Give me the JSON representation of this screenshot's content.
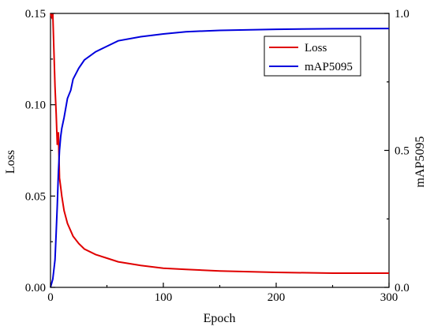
{
  "chart_data": {
    "type": "line",
    "xlabel": "Epoch",
    "ylabel_left": "Loss",
    "ylabel_right": "mAP5095",
    "xlim": [
      0,
      300
    ],
    "ylim_left": [
      0.0,
      0.15
    ],
    "ylim_right": [
      0.0,
      1.0
    ],
    "x_ticks": [
      "0",
      "100",
      "200",
      "300"
    ],
    "y_left_ticks": [
      "0.00",
      "0.05",
      "0.10",
      "0.15"
    ],
    "y_right_ticks": [
      "0.0",
      "0.5",
      "1.0"
    ],
    "legend_position": "top-right",
    "grid": false,
    "series": [
      {
        "name": "Loss",
        "axis": "left",
        "color": "#e00000",
        "x": [
          0,
          1,
          2,
          3,
          4,
          5,
          6,
          7,
          8,
          9,
          10,
          12,
          15,
          20,
          25,
          30,
          40,
          50,
          60,
          80,
          100,
          120,
          150,
          200,
          250,
          300
        ],
        "y": [
          0.15,
          0.148,
          0.15,
          0.13,
          0.11,
          0.095,
          0.078,
          0.085,
          0.06,
          0.055,
          0.05,
          0.042,
          0.035,
          0.028,
          0.024,
          0.021,
          0.018,
          0.016,
          0.014,
          0.012,
          0.0105,
          0.0098,
          0.009,
          0.0082,
          0.0078,
          0.0078
        ]
      },
      {
        "name": "mAP5095",
        "axis": "right",
        "color": "#0000dd",
        "x": [
          0,
          2,
          4,
          5,
          6,
          7,
          8,
          9,
          10,
          12,
          15,
          18,
          20,
          25,
          30,
          40,
          50,
          60,
          80,
          100,
          120,
          150,
          200,
          250,
          300
        ],
        "y": [
          0.0,
          0.03,
          0.1,
          0.2,
          0.3,
          0.42,
          0.5,
          0.55,
          0.58,
          0.62,
          0.69,
          0.72,
          0.76,
          0.8,
          0.83,
          0.86,
          0.88,
          0.9,
          0.915,
          0.925,
          0.933,
          0.938,
          0.942,
          0.944,
          0.945
        ]
      }
    ]
  }
}
